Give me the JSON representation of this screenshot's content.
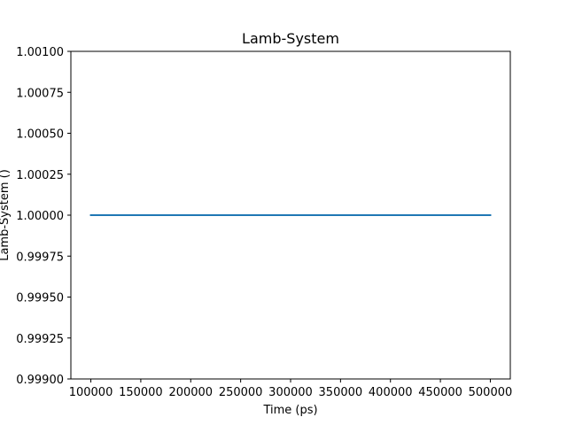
{
  "chart_data": {
    "type": "line",
    "title": "Lamb-System",
    "xlabel": "Time (ps)",
    "ylabel": "Lamb-System ()",
    "xlim": [
      80000,
      520000
    ],
    "ylim": [
      0.999,
      1.001
    ],
    "x_ticks": [
      100000,
      150000,
      200000,
      250000,
      300000,
      350000,
      400000,
      450000,
      500000
    ],
    "x_tick_labels": [
      "100000",
      "150000",
      "200000",
      "250000",
      "300000",
      "350000",
      "400000",
      "450000",
      "500000"
    ],
    "y_ticks": [
      0.999,
      0.99925,
      0.9995,
      0.99975,
      1.0,
      1.00025,
      1.0005,
      1.00075,
      1.001
    ],
    "y_tick_labels": [
      "0.99900",
      "0.99925",
      "0.99950",
      "0.99975",
      "1.00000",
      "1.00025",
      "1.00050",
      "1.00075",
      "1.00100"
    ],
    "grid": false,
    "series": [
      {
        "color": "#1f77b4",
        "x": [
          100000,
          500000
        ],
        "y": [
          1.0,
          1.0
        ]
      }
    ]
  }
}
